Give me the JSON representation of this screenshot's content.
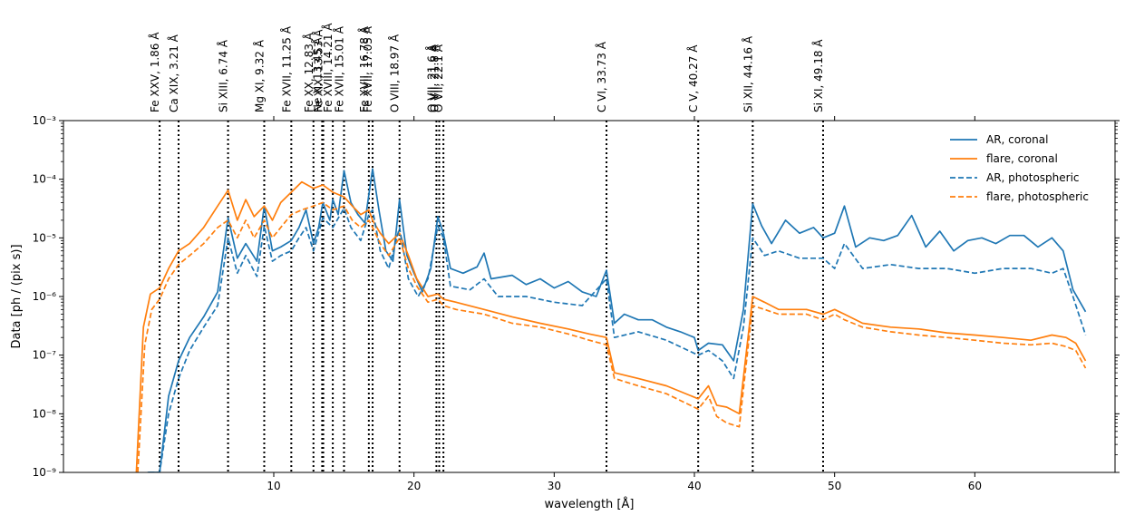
{
  "chart_data": {
    "type": "line",
    "title": "",
    "xlabel": "wavelength [Å]",
    "ylabel": "Data [ph / (pix s)]",
    "x_scale": "linear",
    "y_scale": "log",
    "xlim": [
      -5,
      70
    ],
    "ylim": [
      1e-09,
      0.001
    ],
    "x_ticks": [
      10,
      20,
      30,
      40,
      50,
      60
    ],
    "y_ticks": [
      {
        "value": 1e-09,
        "label": "10⁻⁹"
      },
      {
        "value": 1e-08,
        "label": "10⁻⁸"
      },
      {
        "value": 1e-07,
        "label": "10⁻⁷"
      },
      {
        "value": 1e-06,
        "label": "10⁻⁶"
      },
      {
        "value": 1e-05,
        "label": "10⁻⁵"
      },
      {
        "value": 0.0001,
        "label": "10⁻⁴"
      },
      {
        "value": 0.001,
        "label": "10⁻³"
      }
    ],
    "grid": false,
    "legend_position": "top-right",
    "line_markers": [
      {
        "label": "Fe XXV, 1.86 Å",
        "x": 1.86
      },
      {
        "label": "Ca XIX, 3.21 Å",
        "x": 3.21
      },
      {
        "label": "Si XIII, 6.74 Å",
        "x": 6.74
      },
      {
        "label": "Mg XI, 9.32 Å",
        "x": 9.32
      },
      {
        "label": "Fe XVII, 11.25 Å",
        "x": 11.25
      },
      {
        "label": "Fe XX, 12.83 Å",
        "x": 12.83
      },
      {
        "label": "Ne X, 13.45 Å",
        "x": 13.45
      },
      {
        "label": "Fe XIX, 13.53 Å",
        "x": 13.53
      },
      {
        "label": "Fe XVIII, 14.21 Å",
        "x": 14.21
      },
      {
        "label": "Fe XVII, 15.01 Å",
        "x": 15.01
      },
      {
        "label": "Fe XVII, 16.78 Å",
        "x": 16.78
      },
      {
        "label": "Fe XVII, 17.05 Å",
        "x": 17.05
      },
      {
        "label": "O VIII, 18.97 Å",
        "x": 18.97
      },
      {
        "label": "O VII, 21.6 Å",
        "x": 21.6
      },
      {
        "label": "O VII, 21.8 Å",
        "x": 21.8
      },
      {
        "label": "O VII, 22.1 Å",
        "x": 22.1
      },
      {
        "label": "C VI, 33.73 Å",
        "x": 33.73
      },
      {
        "label": "C V, 40.27 Å",
        "x": 40.27
      },
      {
        "label": "Si XII, 44.16 Å",
        "x": 44.16
      },
      {
        "label": "Si XI, 49.18 Å",
        "x": 49.18
      }
    ],
    "series": [
      {
        "name": "AR, coronal",
        "color": "#1f77b4",
        "dash": "solid",
        "x": [
          1.0,
          1.86,
          2.5,
          3.21,
          4.0,
          5.0,
          6.0,
          6.74,
          7.4,
          8.0,
          8.8,
          9.32,
          9.9,
          10.5,
          11.25,
          11.8,
          12.3,
          12.83,
          13.2,
          13.5,
          14.0,
          14.21,
          14.6,
          15.01,
          15.5,
          16.0,
          16.5,
          16.78,
          17.05,
          17.5,
          18.0,
          18.5,
          18.97,
          19.5,
          20.0,
          20.6,
          21.2,
          21.7,
          22.1,
          22.6,
          23.5,
          24.5,
          25.0,
          25.5,
          27.0,
          28.0,
          29.0,
          30.0,
          31.0,
          32.0,
          33.0,
          33.73,
          34.3,
          35.0,
          36.0,
          37.0,
          38.0,
          39.0,
          40.0,
          40.27,
          41.0,
          42.0,
          42.8,
          43.5,
          44.16,
          44.8,
          45.5,
          46.5,
          47.5,
          48.5,
          49.18,
          50.0,
          50.7,
          51.5,
          52.5,
          53.5,
          54.5,
          55.5,
          56.5,
          57.5,
          58.5,
          59.5,
          60.5,
          61.5,
          62.5,
          63.5,
          64.5,
          65.5,
          66.3,
          67.0,
          67.9
        ],
        "values": [
          1e-09,
          1e-09,
          2e-08,
          8e-08,
          2e-07,
          4.5e-07,
          1.2e-06,
          2.2e-05,
          4.5e-06,
          8e-06,
          4e-06,
          3.5e-05,
          6e-06,
          7e-06,
          9e-06,
          1.5e-05,
          3e-05,
          8e-06,
          1.5e-05,
          4e-05,
          2e-05,
          4.5e-05,
          2.5e-05,
          0.00014,
          4e-05,
          2.5e-05,
          1.8e-05,
          5.5e-05,
          0.00015,
          3e-05,
          6e-06,
          4e-06,
          4.5e-05,
          5e-06,
          2.5e-06,
          1.2e-06,
          3e-06,
          2.3e-05,
          1.2e-05,
          3e-06,
          2.5e-06,
          3.2e-06,
          5.5e-06,
          2e-06,
          2.3e-06,
          1.6e-06,
          2e-06,
          1.4e-06,
          1.8e-06,
          1.2e-06,
          1e-06,
          2.8e-06,
          3.5e-07,
          5e-07,
          4e-07,
          4e-07,
          3e-07,
          2.5e-07,
          2e-07,
          1.2e-07,
          1.6e-07,
          1.5e-07,
          8e-08,
          6e-07,
          3.8e-05,
          1.6e-05,
          8e-06,
          2e-05,
          1.2e-05,
          1.5e-05,
          1e-05,
          1.2e-05,
          3.5e-05,
          7e-06,
          1e-05,
          9e-06,
          1.1e-05,
          2.4e-05,
          7e-06,
          1.3e-05,
          6e-06,
          9e-06,
          1e-05,
          8e-06,
          1.1e-05,
          1.1e-05,
          7e-06,
          1e-05,
          6e-06,
          1.3e-06,
          5.5e-07
        ]
      },
      {
        "name": "flare, coronal",
        "color": "#ff7f0e",
        "dash": "solid",
        "x": [
          0.2,
          0.7,
          1.2,
          1.86,
          2.5,
          3.21,
          4.0,
          5.0,
          6.0,
          6.74,
          7.4,
          8.0,
          8.6,
          9.32,
          9.9,
          10.5,
          11.25,
          12.0,
          12.83,
          13.5,
          14.21,
          15.01,
          15.6,
          16.2,
          16.78,
          17.05,
          17.6,
          18.2,
          18.97,
          19.6,
          20.2,
          21.0,
          21.7,
          22.1,
          23.0,
          25.0,
          27.0,
          29.0,
          31.0,
          32.5,
          33.73,
          34.3,
          36.0,
          38.0,
          40.27,
          41.0,
          41.6,
          42.3,
          43.2,
          44.16,
          45.0,
          46.0,
          48.0,
          49.18,
          50.0,
          50.7,
          52.0,
          54.0,
          56.0,
          58.0,
          60.0,
          62.0,
          64.0,
          65.5,
          66.5,
          67.2,
          67.9
        ],
        "values": [
          1e-09,
          3e-07,
          1.1e-06,
          1.4e-06,
          3e-06,
          6e-06,
          8e-06,
          1.5e-05,
          3.5e-05,
          6.5e-05,
          2e-05,
          4.5e-05,
          2.3e-05,
          3.5e-05,
          2e-05,
          4e-05,
          6e-05,
          9e-05,
          7e-05,
          8e-05,
          6e-05,
          5e-05,
          3.5e-05,
          2.5e-05,
          3e-05,
          2e-05,
          1.2e-05,
          8e-06,
          1.2e-05,
          5e-06,
          2e-06,
          1e-06,
          1.1e-06,
          9e-07,
          8e-07,
          6e-07,
          4.5e-07,
          3.5e-07,
          2.8e-07,
          2.3e-07,
          2e-07,
          5e-08,
          4e-08,
          3e-08,
          1.8e-08,
          3e-08,
          1.4e-08,
          1.3e-08,
          1e-08,
          1e-06,
          8e-07,
          6e-07,
          6e-07,
          5e-07,
          6e-07,
          5e-07,
          3.5e-07,
          3e-07,
          2.8e-07,
          2.4e-07,
          2.2e-07,
          2e-07,
          1.8e-07,
          2.2e-07,
          2e-07,
          1.6e-07,
          8e-08
        ]
      },
      {
        "name": "AR, photospheric",
        "color": "#1f77b4",
        "dash": "dashed",
        "x": [
          1.1,
          1.86,
          2.5,
          3.21,
          4.0,
          5.0,
          6.0,
          6.74,
          7.4,
          8.0,
          8.8,
          9.32,
          9.9,
          10.5,
          11.25,
          11.8,
          12.3,
          12.83,
          13.5,
          14.21,
          15.01,
          15.5,
          16.2,
          16.78,
          17.05,
          17.6,
          18.2,
          18.97,
          19.6,
          20.3,
          21.0,
          21.7,
          22.1,
          22.6,
          24.0,
          25.0,
          26.0,
          28.0,
          30.0,
          32.0,
          33.73,
          34.3,
          36.0,
          38.0,
          40.27,
          41.0,
          42.0,
          42.8,
          43.5,
          44.16,
          45.0,
          46.0,
          47.5,
          49.18,
          50.0,
          50.7,
          52.0,
          54.0,
          56.0,
          58.0,
          60.0,
          62.0,
          64.0,
          65.5,
          66.3,
          67.0,
          67.9
        ],
        "values": [
          1e-09,
          1e-09,
          1e-08,
          4e-08,
          1.2e-07,
          3e-07,
          7e-07,
          1e-05,
          2.5e-06,
          5e-06,
          2.2e-06,
          1.6e-05,
          4e-06,
          5e-06,
          6e-06,
          1e-05,
          1.5e-05,
          6e-06,
          2.2e-05,
          1.5e-05,
          3.2e-05,
          1.5e-05,
          9e-06,
          2.5e-05,
          3e-05,
          6e-06,
          3e-06,
          1.5e-05,
          2e-06,
          1e-06,
          2e-06,
          1.6e-05,
          1e-05,
          1.5e-06,
          1.3e-06,
          2e-06,
          1e-06,
          1e-06,
          8e-07,
          7e-07,
          2e-06,
          2e-07,
          2.5e-07,
          1.8e-07,
          1e-07,
          1.2e-07,
          8e-08,
          4e-08,
          3e-07,
          1e-05,
          5e-06,
          6e-06,
          4.5e-06,
          4.5e-06,
          3e-06,
          8e-06,
          3e-06,
          3.5e-06,
          3e-06,
          3e-06,
          2.5e-06,
          3e-06,
          3e-06,
          2.5e-06,
          3e-06,
          1e-06,
          2.2e-07
        ]
      },
      {
        "name": "flare, photospheric",
        "color": "#ff7f0e",
        "dash": "dashed",
        "x": [
          0.3,
          0.8,
          1.3,
          1.86,
          2.5,
          3.21,
          4.0,
          5.0,
          6.0,
          6.74,
          7.4,
          8.0,
          8.6,
          9.32,
          9.9,
          10.5,
          11.25,
          12.0,
          12.83,
          13.5,
          14.21,
          15.01,
          15.6,
          16.2,
          16.78,
          17.05,
          17.6,
          18.2,
          18.97,
          19.6,
          20.2,
          21.0,
          21.7,
          22.1,
          23.0,
          25.0,
          27.0,
          29.0,
          31.0,
          32.5,
          33.73,
          34.3,
          36.0,
          38.0,
          40.27,
          41.0,
          41.6,
          42.3,
          43.2,
          44.16,
          45.0,
          46.0,
          48.0,
          49.18,
          50.0,
          50.7,
          52.0,
          54.0,
          56.0,
          58.0,
          60.0,
          62.0,
          64.0,
          65.5,
          66.5,
          67.2,
          67.9
        ],
        "values": [
          1e-09,
          1.5e-07,
          6e-07,
          9e-07,
          2e-06,
          3.5e-06,
          5e-06,
          8e-06,
          1.5e-05,
          2e-05,
          1e-05,
          2e-05,
          1e-05,
          2e-05,
          1e-05,
          1.5e-05,
          2.5e-05,
          3e-05,
          3.5e-05,
          4e-05,
          3e-05,
          3.5e-05,
          2e-05,
          1.5e-05,
          2e-05,
          1.5e-05,
          8e-06,
          5e-06,
          1e-05,
          3e-06,
          1.5e-06,
          8e-07,
          9e-07,
          7e-07,
          6e-07,
          5e-07,
          3.5e-07,
          3e-07,
          2.3e-07,
          1.8e-07,
          1.5e-07,
          4e-08,
          3e-08,
          2.2e-08,
          1.2e-08,
          2e-08,
          9e-09,
          7e-09,
          6e-09,
          7e-07,
          6e-07,
          5e-07,
          5e-07,
          4e-07,
          5e-07,
          4e-07,
          3e-07,
          2.5e-07,
          2.2e-07,
          2e-07,
          1.8e-07,
          1.6e-07,
          1.5e-07,
          1.6e-07,
          1.4e-07,
          1.2e-07,
          6e-08
        ]
      }
    ]
  }
}
